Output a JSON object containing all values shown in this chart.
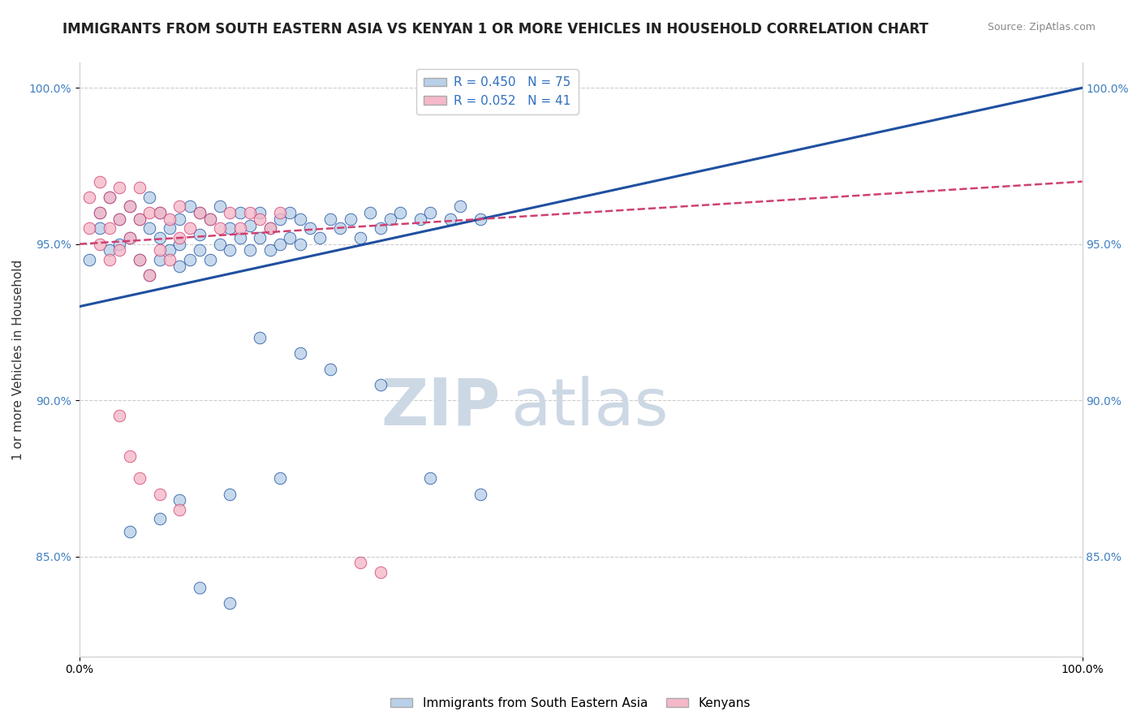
{
  "title": "IMMIGRANTS FROM SOUTH EASTERN ASIA VS KENYAN 1 OR MORE VEHICLES IN HOUSEHOLD CORRELATION CHART",
  "source": "Source: ZipAtlas.com",
  "ylabel": "1 or more Vehicles in Household",
  "legend_label1": "Immigrants from South Eastern Asia",
  "legend_label2": "Kenyans",
  "r1": 0.45,
  "n1": 75,
  "r2": 0.052,
  "n2": 41,
  "color_blue": "#b8d0e8",
  "color_pink": "#f4b8c8",
  "line_color_blue": "#2050a0",
  "line_color_pink": "#d04070",
  "watermark_zip": "ZIP",
  "watermark_atlas": "atlas",
  "blue_scatter_x": [
    0.01,
    0.02,
    0.02,
    0.03,
    0.03,
    0.04,
    0.04,
    0.05,
    0.05,
    0.06,
    0.06,
    0.07,
    0.07,
    0.07,
    0.08,
    0.08,
    0.08,
    0.09,
    0.09,
    0.1,
    0.1,
    0.1,
    0.11,
    0.11,
    0.12,
    0.12,
    0.12,
    0.13,
    0.13,
    0.14,
    0.14,
    0.15,
    0.15,
    0.16,
    0.16,
    0.17,
    0.17,
    0.18,
    0.18,
    0.19,
    0.19,
    0.2,
    0.2,
    0.21,
    0.21,
    0.22,
    0.22,
    0.23,
    0.24,
    0.25,
    0.26,
    0.27,
    0.28,
    0.29,
    0.3,
    0.31,
    0.32,
    0.34,
    0.35,
    0.37,
    0.38,
    0.4,
    0.18,
    0.22,
    0.25,
    0.3,
    0.2,
    0.15,
    0.1,
    0.08,
    0.05,
    0.35,
    0.4,
    0.12,
    0.15
  ],
  "blue_scatter_y": [
    0.945,
    0.955,
    0.96,
    0.948,
    0.965,
    0.95,
    0.958,
    0.952,
    0.962,
    0.945,
    0.958,
    0.94,
    0.955,
    0.965,
    0.945,
    0.952,
    0.96,
    0.948,
    0.955,
    0.943,
    0.95,
    0.958,
    0.945,
    0.962,
    0.948,
    0.953,
    0.96,
    0.945,
    0.958,
    0.95,
    0.962,
    0.948,
    0.955,
    0.952,
    0.96,
    0.948,
    0.956,
    0.952,
    0.96,
    0.948,
    0.955,
    0.95,
    0.958,
    0.952,
    0.96,
    0.95,
    0.958,
    0.955,
    0.952,
    0.958,
    0.955,
    0.958,
    0.952,
    0.96,
    0.955,
    0.958,
    0.96,
    0.958,
    0.96,
    0.958,
    0.962,
    0.958,
    0.92,
    0.915,
    0.91,
    0.905,
    0.875,
    0.87,
    0.868,
    0.862,
    0.858,
    0.875,
    0.87,
    0.84,
    0.835
  ],
  "pink_scatter_x": [
    0.01,
    0.01,
    0.02,
    0.02,
    0.02,
    0.03,
    0.03,
    0.03,
    0.04,
    0.04,
    0.04,
    0.05,
    0.05,
    0.06,
    0.06,
    0.06,
    0.07,
    0.07,
    0.08,
    0.08,
    0.09,
    0.09,
    0.1,
    0.1,
    0.11,
    0.12,
    0.13,
    0.14,
    0.15,
    0.16,
    0.17,
    0.18,
    0.19,
    0.2,
    0.04,
    0.05,
    0.06,
    0.08,
    0.1,
    0.28,
    0.3
  ],
  "pink_scatter_y": [
    0.965,
    0.955,
    0.96,
    0.95,
    0.97,
    0.955,
    0.965,
    0.945,
    0.958,
    0.968,
    0.948,
    0.952,
    0.962,
    0.945,
    0.958,
    0.968,
    0.94,
    0.96,
    0.948,
    0.96,
    0.945,
    0.958,
    0.952,
    0.962,
    0.955,
    0.96,
    0.958,
    0.955,
    0.96,
    0.955,
    0.96,
    0.958,
    0.955,
    0.96,
    0.895,
    0.882,
    0.875,
    0.87,
    0.865,
    0.848,
    0.845
  ],
  "xlim": [
    0.0,
    1.0
  ],
  "ylim": [
    0.818,
    1.008
  ],
  "yticks": [
    0.85,
    0.9,
    0.95,
    1.0
  ],
  "ytick_labels": [
    "85.0%",
    "90.0%",
    "95.0%",
    "100.0%"
  ],
  "xticks": [
    0.0,
    1.0
  ],
  "xtick_labels": [
    "0.0%",
    "100.0%"
  ],
  "grid_color": "#cccccc",
  "background_color": "#ffffff",
  "title_fontsize": 12,
  "axis_label_fontsize": 11,
  "tick_fontsize": 10,
  "watermark_color": "#cdd8e5",
  "watermark_fontsize_zip": 58,
  "watermark_fontsize_atlas": 58
}
